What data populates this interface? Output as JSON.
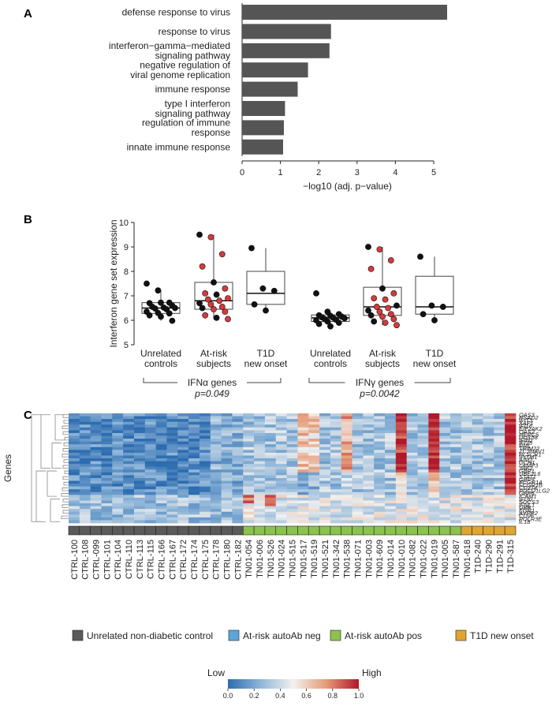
{
  "chart_data": [
    {
      "panel": "A",
      "type": "bar",
      "orientation": "horizontal",
      "categories": [
        "defense response to virus",
        "response to virus",
        "interferon−gamma−mediated signaling pathway",
        "negative regulation of viral genome replication",
        "immune response",
        "type I interferon signaling pathway",
        "regulation of immune response",
        "innate immune response"
      ],
      "category_lines": [
        [
          "defense response to virus"
        ],
        [
          "response to virus"
        ],
        [
          "interferon−gamma−mediated",
          "signaling pathway"
        ],
        [
          "negative regulation of",
          "viral genome replication"
        ],
        [
          "immune response"
        ],
        [
          "type I interferon",
          "signaling pathway"
        ],
        [
          "regulation of immune",
          "response"
        ],
        [
          "innate immune response"
        ]
      ],
      "values": [
        5.35,
        2.32,
        2.28,
        1.72,
        1.45,
        1.12,
        1.09,
        1.07
      ],
      "xlabel": "−log10 (adj. p−value)",
      "xlim": [
        0,
        5.6
      ],
      "xticks": [
        0,
        1,
        2,
        3,
        4,
        5
      ],
      "bar_color": "#555555"
    },
    {
      "panel": "B",
      "type": "box",
      "ylabel": "Interferon gene set expression",
      "ylim": [
        5,
        10
      ],
      "yticks": [
        5,
        6,
        7,
        8,
        9,
        10
      ],
      "point_colors": {
        "black": "#111111",
        "red": "#d63a3a"
      },
      "groups": [
        {
          "label": [
            "Unrelated",
            "controls"
          ],
          "q1": 6.28,
          "median": 6.5,
          "q3": 6.72,
          "whisker_low": 5.98,
          "whisker_high": 7.22,
          "points": [
            [
              7.5,
              "black"
            ],
            [
              7.22,
              "black"
            ],
            [
              6.72,
              "black"
            ],
            [
              6.7,
              "black"
            ],
            [
              6.72,
              "black"
            ],
            [
              6.6,
              "black"
            ],
            [
              6.55,
              "black"
            ],
            [
              6.52,
              "black"
            ],
            [
              6.5,
              "black"
            ],
            [
              6.48,
              "black"
            ],
            [
              6.45,
              "black"
            ],
            [
              6.35,
              "black"
            ],
            [
              6.3,
              "black"
            ],
            [
              6.28,
              "black"
            ],
            [
              6.2,
              "black"
            ],
            [
              6.15,
              "black"
            ],
            [
              5.98,
              "black"
            ]
          ]
        },
        {
          "label": [
            "At-risk",
            "subjects"
          ],
          "q1": 6.45,
          "median": 6.8,
          "q3": 7.55,
          "whisker_low": 6.05,
          "whisker_high": 9.5,
          "points": [
            [
              9.5,
              "black"
            ],
            [
              9.4,
              "red"
            ],
            [
              8.7,
              "red"
            ],
            [
              8.2,
              "red"
            ],
            [
              7.55,
              "black"
            ],
            [
              7.3,
              "red"
            ],
            [
              7.1,
              "red"
            ],
            [
              7.05,
              "black"
            ],
            [
              6.9,
              "red"
            ],
            [
              6.85,
              "red"
            ],
            [
              6.8,
              "red"
            ],
            [
              6.7,
              "black"
            ],
            [
              6.65,
              "red"
            ],
            [
              6.55,
              "red"
            ],
            [
              6.5,
              "black"
            ],
            [
              6.45,
              "red"
            ],
            [
              6.35,
              "red"
            ],
            [
              6.2,
              "red"
            ],
            [
              6.1,
              "black"
            ],
            [
              6.05,
              "red"
            ]
          ]
        },
        {
          "label": [
            "T1D",
            "new onset"
          ],
          "q1": 6.65,
          "median": 7.1,
          "q3": 8.0,
          "whisker_low": 6.4,
          "whisker_high": 8.95,
          "points": [
            [
              8.95,
              "black"
            ],
            [
              7.3,
              "black"
            ],
            [
              7.2,
              "black"
            ],
            [
              6.65,
              "black"
            ],
            [
              6.4,
              "black"
            ]
          ]
        },
        {
          "label": [
            "Unrelated",
            "controls"
          ],
          "q1": 5.95,
          "median": 6.1,
          "q3": 6.22,
          "whisker_low": 5.75,
          "whisker_high": 6.35,
          "points": [
            [
              7.1,
              "black"
            ],
            [
              6.35,
              "black"
            ],
            [
              6.25,
              "black"
            ],
            [
              6.2,
              "black"
            ],
            [
              6.18,
              "black"
            ],
            [
              6.15,
              "black"
            ],
            [
              6.12,
              "black"
            ],
            [
              6.1,
              "black"
            ],
            [
              6.08,
              "black"
            ],
            [
              6.05,
              "black"
            ],
            [
              6.02,
              "black"
            ],
            [
              6.0,
              "black"
            ],
            [
              5.95,
              "black"
            ],
            [
              5.9,
              "black"
            ],
            [
              5.85,
              "black"
            ],
            [
              5.75,
              "black"
            ]
          ]
        },
        {
          "label": [
            "At-risk",
            "subjects"
          ],
          "q1": 6.2,
          "median": 6.55,
          "q3": 7.35,
          "whisker_low": 5.8,
          "whisker_high": 9.0,
          "points": [
            [
              9.0,
              "black"
            ],
            [
              8.9,
              "red"
            ],
            [
              8.45,
              "red"
            ],
            [
              8.1,
              "red"
            ],
            [
              7.3,
              "black"
            ],
            [
              7.1,
              "red"
            ],
            [
              6.9,
              "red"
            ],
            [
              6.85,
              "red"
            ],
            [
              6.6,
              "black"
            ],
            [
              6.55,
              "red"
            ],
            [
              6.5,
              "red"
            ],
            [
              6.4,
              "black"
            ],
            [
              6.35,
              "red"
            ],
            [
              6.25,
              "red"
            ],
            [
              6.2,
              "black"
            ],
            [
              6.15,
              "red"
            ],
            [
              6.05,
              "red"
            ],
            [
              5.95,
              "black"
            ],
            [
              5.9,
              "red"
            ],
            [
              5.8,
              "red"
            ]
          ]
        },
        {
          "label": [
            "T1D",
            "new onset"
          ],
          "q1": 6.25,
          "median": 6.55,
          "q3": 7.8,
          "whisker_low": 6.0,
          "whisker_high": 8.6,
          "points": [
            [
              8.6,
              "black"
            ],
            [
              6.6,
              "black"
            ],
            [
              6.55,
              "black"
            ],
            [
              6.25,
              "black"
            ],
            [
              6.0,
              "black"
            ]
          ]
        }
      ],
      "brackets": [
        {
          "label": "IFNα genes",
          "pvalue": "p=0.049"
        },
        {
          "label": "IFNγ genes",
          "pvalue": "p=0.0042"
        }
      ]
    },
    {
      "panel": "C",
      "type": "heatmap",
      "ylabel": "Genes",
      "colorbar": {
        "low_label": "Low",
        "high_label": "High",
        "ticks": [
          "0.0",
          "0.2",
          "0.4",
          "0.6",
          "0.8",
          "1.0"
        ],
        "colors": [
          "#2d6cb0",
          "#8fb6d9",
          "#f3f1ee",
          "#e59b78",
          "#b2182b"
        ]
      },
      "genes": [
        "OAS3",
        "RSAD2",
        "IFIT3",
        "XAF1",
        "IFI16",
        "EIF2AK2",
        "OAS2",
        "HERC5",
        "DDX58",
        "IFIH1",
        "IFI35",
        "PML",
        "TRIM22",
        "ZC3HAV1",
        "PLSCR1",
        "IFITM1",
        "AIM2",
        "GCH1",
        "LAMP3",
        "JAK2",
        "GBP1",
        "UBE2L6",
        "STAT1",
        "GBP5",
        "FCGR1A",
        "FCGR1B",
        "CD274",
        "PDCD1LG2",
        "GBP6",
        "ICAM1",
        "IFI30",
        "SOCS3",
        "IFNL1",
        "UBB",
        "EGR1",
        "AVPR2",
        "CD96",
        "POLR3E",
        "IL18"
      ],
      "samples": [
        "CTRL-100",
        "CTRL-108",
        "CTRL-099",
        "CTRL-101",
        "CTRL-104",
        "CTRL-110",
        "CTRL-113",
        "CTRL-115",
        "CTRL-166",
        "CTRL-167",
        "CTRL-172",
        "CTRL-174",
        "CTRL-175",
        "CTRL-178",
        "CTRL-180",
        "CTRL-182",
        "TN01-054",
        "TN01-006",
        "TN01-526",
        "TN01-024",
        "TN01-515",
        "TN01-517",
        "TN01-519",
        "TN01-521",
        "TN01-342",
        "TN01-538",
        "TN01-071",
        "TN01-003",
        "TN01-609",
        "TN01-014",
        "TN01-010",
        "TN01-082",
        "TN01-022",
        "TN01-019",
        "TN01-005",
        "TN01-587",
        "TN01-618",
        "T1D-240",
        "T1D-290",
        "T1D-291",
        "T1D-315"
      ],
      "groups": [
        "ctrl",
        "ctrl",
        "ctrl",
        "ctrl",
        "ctrl",
        "ctrl",
        "ctrl",
        "ctrl",
        "ctrl",
        "ctrl",
        "ctrl",
        "ctrl",
        "ctrl",
        "ctrl",
        "ctrl",
        "ctrl",
        "pos",
        "pos",
        "pos",
        "pos",
        "pos",
        "pos",
        "pos",
        "pos",
        "pos",
        "pos",
        "pos",
        "pos",
        "pos",
        "pos",
        "pos",
        "pos",
        "pos",
        "pos",
        "pos",
        "pos",
        "t1d",
        "t1d",
        "t1d",
        "t1d",
        "t1d"
      ],
      "group_legend": [
        {
          "key": "ctrl",
          "label": "Unrelated non-diabetic control",
          "color": "#5a5a5a"
        },
        {
          "key": "neg",
          "label": "At-risk autoAb neg",
          "color": "#5ba6dc"
        },
        {
          "key": "pos",
          "label": "At-risk autoAb pos",
          "color": "#8cc24e"
        },
        {
          "key": "t1d",
          "label": "T1D new onset",
          "color": "#e0a530"
        }
      ]
    }
  ],
  "panel_labels": {
    "a": "A",
    "b": "B",
    "c": "C"
  }
}
